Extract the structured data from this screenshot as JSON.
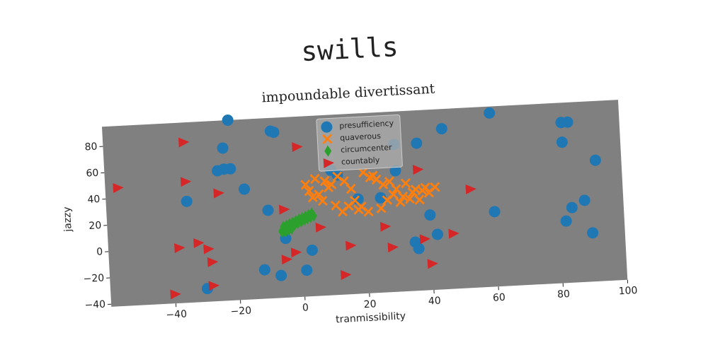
{
  "chart_data": {
    "type": "scatter",
    "title": "swills",
    "subtitle": "impoundable divertissant",
    "x_label": "tranmissibility",
    "y_label": "jazzy",
    "xlim": [
      -60,
      100
    ],
    "ylim": [
      -42,
      95
    ],
    "xticks": [
      {
        "value": -40,
        "label": "−40"
      },
      {
        "value": -20,
        "label": "−20"
      },
      0,
      20,
      40,
      60,
      80,
      100
    ],
    "yticks": [
      {
        "value": -40,
        "label": "−40"
      },
      {
        "value": -20,
        "label": "−20"
      },
      0,
      20,
      40,
      60,
      80
    ],
    "legend": "upper center",
    "series": [
      {
        "name": "presufficiency",
        "color": "#1f77b4",
        "marker": "circle",
        "x": [
          -21,
          -8,
          -7,
          -23,
          -25,
          -23,
          -21,
          -17,
          -35,
          -10,
          -5,
          -12,
          -7,
          1,
          3,
          10,
          12,
          30,
          30,
          37,
          45,
          60,
          82,
          84,
          82,
          92,
          60,
          40,
          42,
          35,
          36,
          88,
          84,
          82,
          90,
          -30,
          25,
          18
        ],
        "y": [
          95,
          85,
          84,
          74,
          57,
          58,
          58,
          42,
          35,
          25,
          3,
          -20,
          -25,
          -22,
          -7,
          53,
          49,
          50,
          70,
          70,
          80,
          90,
          80,
          80,
          65,
          50,
          15,
          15,
          0,
          -5,
          -10,
          20,
          15,
          5,
          -5,
          -32,
          30,
          30
        ]
      },
      {
        "name": "quaverous",
        "color": "#ff7f0e",
        "marker": "x",
        "x": [
          2,
          5,
          8,
          10,
          3,
          6,
          9,
          4,
          7,
          12,
          15,
          18,
          20,
          22,
          24,
          26,
          28,
          30,
          32,
          34,
          36,
          38,
          40,
          42,
          19,
          21,
          25,
          27,
          29,
          31,
          33,
          35,
          37,
          39,
          14,
          16,
          23,
          11,
          13,
          17
        ],
        "y": [
          43,
          47,
          45,
          42,
          38,
          35,
          40,
          33,
          30,
          48,
          25,
          22,
          50,
          46,
          44,
          40,
          42,
          36,
          30,
          28,
          35,
          34,
          32,
          36,
          24,
          20,
          22,
          28,
          32,
          26,
          40,
          33,
          27,
          36,
          44,
          38,
          47,
          26,
          21,
          29
        ]
      },
      {
        "name": "circumcenter",
        "color": "#2ca02c",
        "marker": "diamond",
        "x": [
          -6,
          -5,
          -4,
          -3,
          -2,
          -1,
          0,
          1,
          2,
          3,
          4,
          -5.5,
          -4.5,
          -3.5,
          -2.5,
          -1.5,
          -0.5,
          0.5,
          1.5,
          2.5,
          3.5,
          -6,
          -5,
          -4,
          -3
        ],
        "y": [
          9,
          10,
          11,
          12,
          13,
          14,
          15,
          16,
          17,
          18,
          19,
          12,
          13,
          14,
          15,
          16,
          17,
          18,
          19,
          20,
          21,
          8,
          8,
          9,
          10
        ]
      },
      {
        "name": "countably",
        "color": "#d62728",
        "marker": "triangle",
        "x": [
          -56,
          -35,
          -35,
          -25,
          -38,
          -32,
          -29,
          -28,
          -40,
          -28,
          0,
          -5,
          6,
          15,
          -2,
          -5,
          13,
          26,
          28,
          37,
          38,
          40,
          47,
          53
        ],
        "y": [
          48,
          80,
          50,
          40,
          0,
          3,
          -2,
          -12,
          -35,
          -30,
          72,
          25,
          10,
          -5,
          -8,
          -13,
          -27,
          8,
          -8,
          50,
          -3,
          -22,
          0,
          33
        ]
      }
    ]
  }
}
